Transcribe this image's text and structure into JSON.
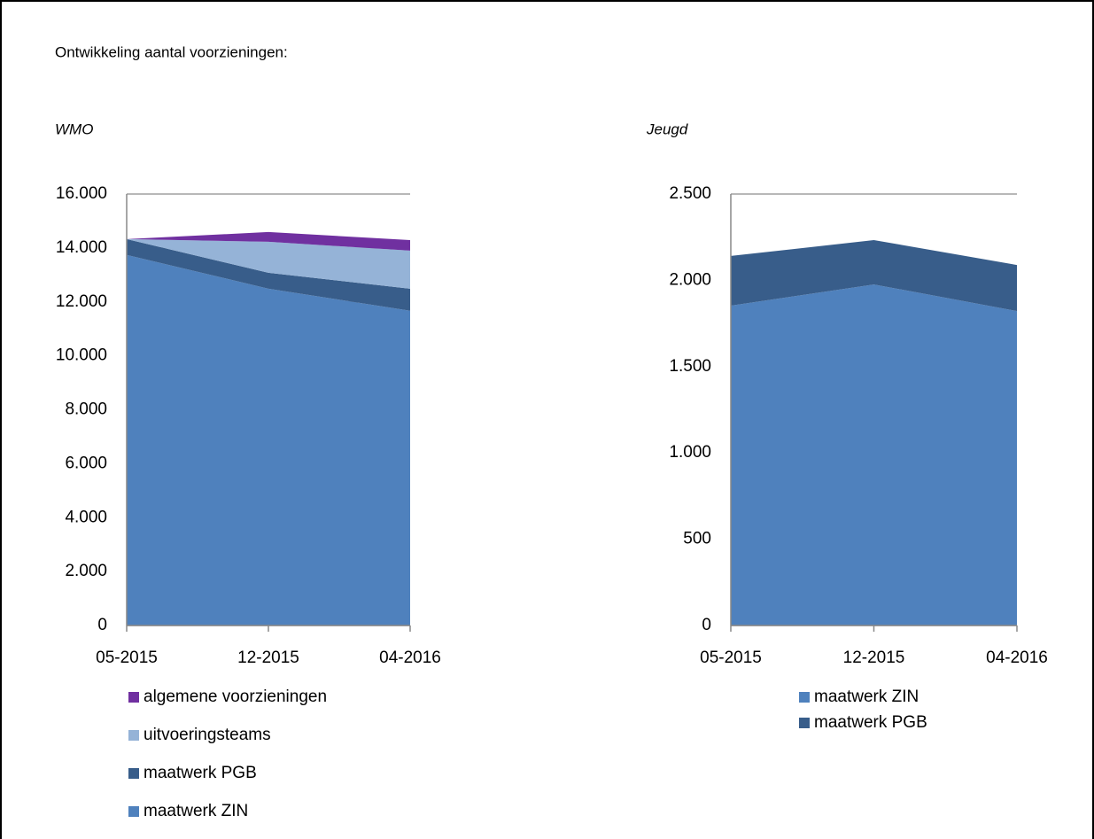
{
  "header": {
    "title": "Ontwikkeling aantal voorzieningen:"
  },
  "chart_data": [
    {
      "type": "area",
      "stacked": true,
      "title": "WMO",
      "categories": [
        "05-2015",
        "12-2015",
        "04-2016"
      ],
      "series": [
        {
          "name": "maatwerk ZIN",
          "color": "#4f81bd",
          "values": [
            13740,
            12490,
            11670
          ]
        },
        {
          "name": "maatwerk PGB",
          "color": "#385d8a",
          "values": [
            590,
            590,
            820
          ]
        },
        {
          "name": "uitvoeringsteams",
          "color": "#95b3d7",
          "values": [
            0,
            1150,
            1410
          ]
        },
        {
          "name": "algemene voorzieningen",
          "color": "#7030a0",
          "values": [
            0,
            360,
            390
          ]
        }
      ],
      "legend_reversed": true,
      "ylim": [
        0,
        16000
      ],
      "yticks": [
        0,
        {
          "value": 2000,
          "label": "2.000"
        },
        {
          "value": 4000,
          "label": "4.000"
        },
        {
          "value": 6000,
          "label": "6.000"
        },
        {
          "value": 8000,
          "label": "8.000"
        },
        {
          "value": 10000,
          "label": "10.000"
        },
        {
          "value": 12000,
          "label": "12.000"
        },
        {
          "value": 14000,
          "label": "14.000"
        },
        {
          "value": 16000,
          "label": "16.000"
        }
      ]
    },
    {
      "type": "area",
      "stacked": true,
      "title": "Jeugd",
      "categories": [
        "05-2015",
        "12-2015",
        "04-2016"
      ],
      "series": [
        {
          "name": "maatwerk ZIN",
          "color": "#4f81bd",
          "values": [
            1853,
            1976,
            1822
          ]
        },
        {
          "name": "maatwerk PGB",
          "color": "#385d8a",
          "values": [
            288,
            257,
            267
          ]
        }
      ],
      "legend_reversed": false,
      "ylim": [
        0,
        2500
      ],
      "yticks": [
        0,
        500,
        {
          "value": 1000,
          "label": "1.000"
        },
        {
          "value": 1500,
          "label": "1.500"
        },
        {
          "value": 2000,
          "label": "2.000"
        },
        {
          "value": 2500,
          "label": "2.500"
        }
      ]
    }
  ]
}
